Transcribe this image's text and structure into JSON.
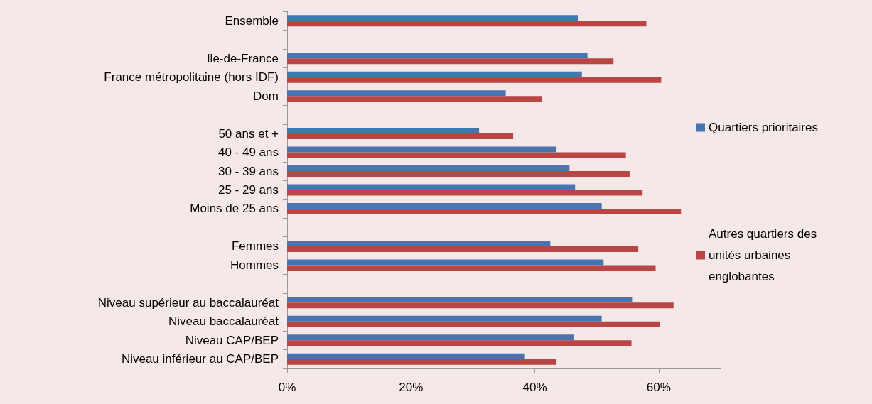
{
  "chart_data": {
    "type": "bar",
    "orientation": "horizontal",
    "categories": [
      "Ensemble",
      null,
      "Ile-de-France",
      "France métropolitaine (hors IDF)",
      "Dom",
      null,
      "50 ans et +",
      "40 - 49 ans",
      "30 - 39 ans",
      "25 - 29 ans",
      "Moins de 25 ans",
      null,
      "Femmes",
      "Hommes",
      null,
      "Niveau supérieur au baccalauréat",
      "Niveau baccalauréat",
      "Niveau CAP/BEP",
      "Niveau inférieur au CAP/BEP"
    ],
    "series": [
      {
        "name": "Quartiers prioritaires",
        "color": "#4a74b0",
        "values": [
          47,
          null,
          48.5,
          47.6,
          35.3,
          null,
          31,
          43.5,
          45.6,
          46.5,
          50.8,
          null,
          42.5,
          51.1,
          null,
          55.7,
          50.8,
          46.3,
          38.4
        ]
      },
      {
        "name": "Autres quartiers des unités urbaines englobantes",
        "color": "#b94545",
        "values": [
          58,
          null,
          52.7,
          60.4,
          41.2,
          null,
          36.5,
          54.7,
          55.3,
          57.4,
          63.6,
          null,
          56.7,
          59.5,
          null,
          62.4,
          60.2,
          55.6,
          43.5
        ]
      }
    ],
    "xlim": [
      0,
      70
    ],
    "xticks": [
      {
        "value": 0,
        "label": "0%"
      },
      {
        "value": 20,
        "label": "20%"
      },
      {
        "value": 40,
        "label": "40%"
      },
      {
        "value": 60,
        "label": "60%"
      }
    ],
    "grid": false,
    "legend": "right"
  }
}
